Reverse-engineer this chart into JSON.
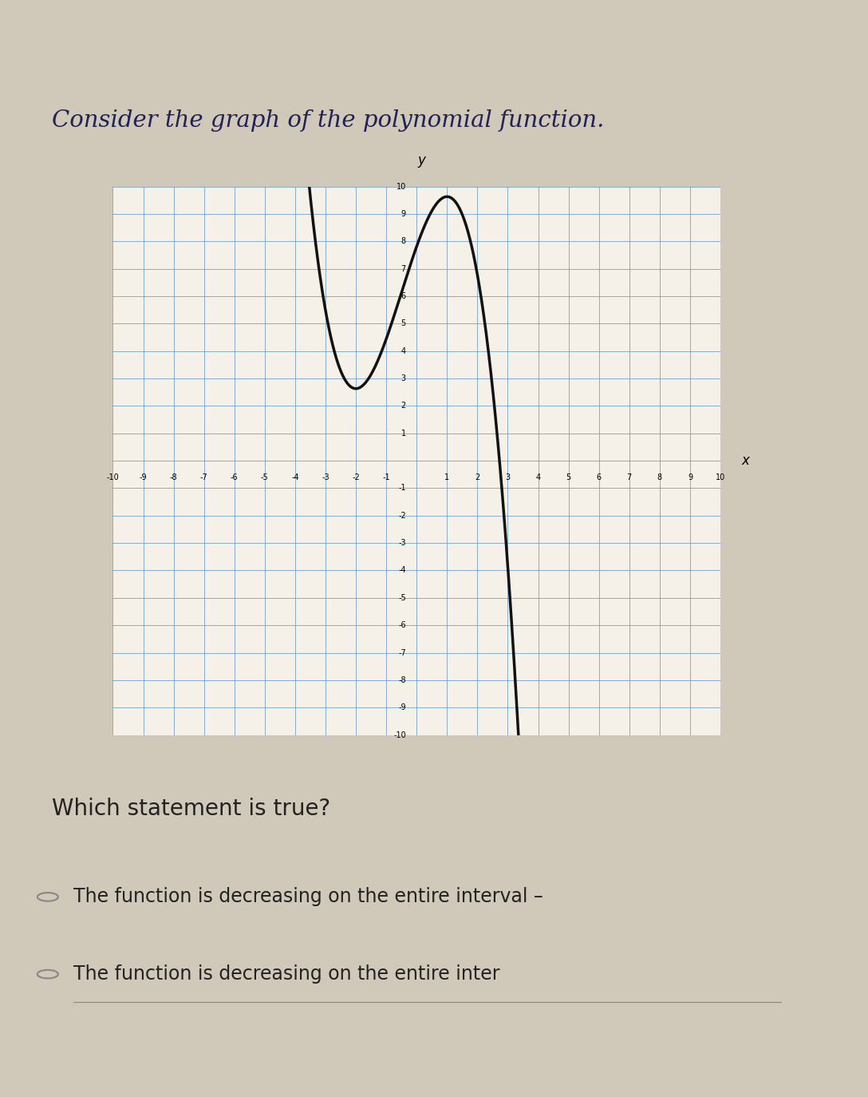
{
  "title": "Consider the graph of the polynomial function.",
  "question": "Which statement is true?",
  "option1": "The function is decreasing on the entire interval –",
  "option2": "The function is decreasing on the entire inter",
  "xlim": [
    -10,
    10
  ],
  "ylim": [
    -10,
    10
  ],
  "xticks": [
    -10,
    -9,
    -8,
    -7,
    -6,
    -5,
    -4,
    -3,
    -2,
    -1,
    0,
    1,
    2,
    3,
    4,
    5,
    6,
    7,
    8,
    9,
    10
  ],
  "yticks": [
    -10,
    -9,
    -8,
    -7,
    -6,
    -5,
    -4,
    -3,
    -2,
    -1,
    0,
    1,
    2,
    3,
    4,
    5,
    6,
    7,
    8,
    9,
    10
  ],
  "grid_color": "#6699cc",
  "curve_color": "#111111",
  "background_color": "#f5f0e8",
  "top_bar_color": "#3333cc",
  "fig_bg": "#d0c8b8",
  "a_val": -0.5185185185185185,
  "b_val": -0.7777777777777778,
  "c_val": 3.111111111111111,
  "d_val": 7.814814814814814
}
